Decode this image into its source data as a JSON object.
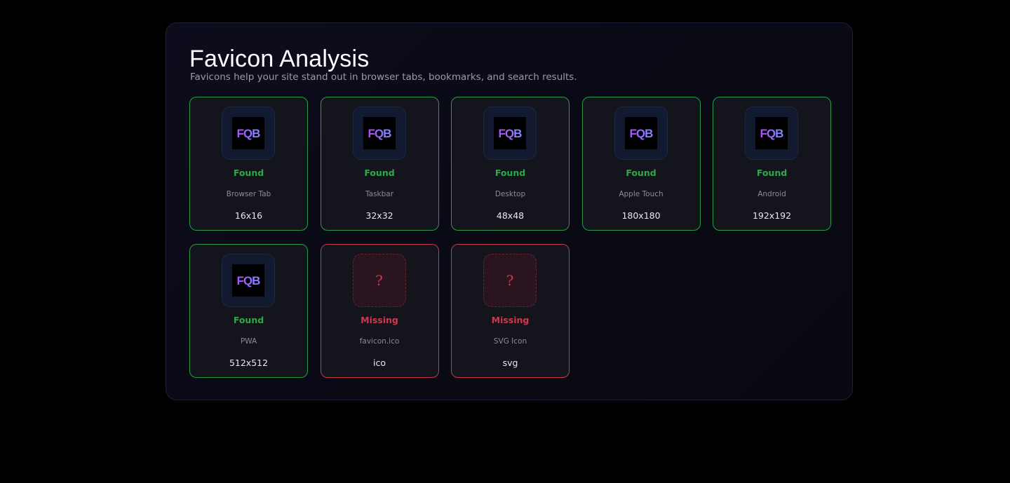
{
  "header": {
    "title": "Favicon Analysis",
    "subtitle": "Favicons help your site stand out in browser tabs, bookmarks, and search results."
  },
  "colors": {
    "found": "#2fa84a",
    "missing": "#d0394c",
    "logo_gradient": [
      "#b04cff",
      "#7a8cff"
    ]
  },
  "logo_text": "FQB",
  "missing_glyph": "?",
  "cards": [
    {
      "status": "Found",
      "label": "Browser Tab",
      "size": "16x16",
      "found": true,
      "icon": "fqb-logo-icon"
    },
    {
      "status": "Found",
      "label": "Taskbar",
      "size": "32x32",
      "found": true,
      "icon": "fqb-logo-icon"
    },
    {
      "status": "Found",
      "label": "Desktop",
      "size": "48x48",
      "found": true,
      "icon": "fqb-logo-icon"
    },
    {
      "status": "Found",
      "label": "Apple Touch",
      "size": "180x180",
      "found": true,
      "icon": "fqb-logo-icon"
    },
    {
      "status": "Found",
      "label": "Android",
      "size": "192x192",
      "found": true,
      "icon": "fqb-logo-icon"
    },
    {
      "status": "Found",
      "label": "PWA",
      "size": "512x512",
      "found": true,
      "icon": "fqb-logo-icon"
    },
    {
      "status": "Missing",
      "label": "favicon.ico",
      "size": "ico",
      "found": false,
      "icon": "question-mark-icon"
    },
    {
      "status": "Missing",
      "label": "SVG Icon",
      "size": "svg",
      "found": false,
      "icon": "question-mark-icon"
    }
  ]
}
